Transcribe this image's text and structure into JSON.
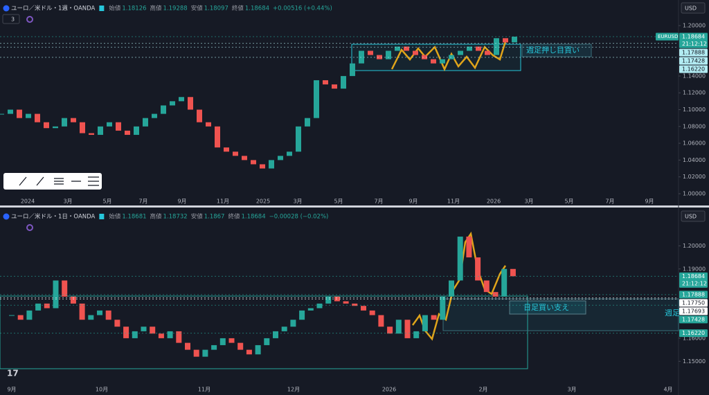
{
  "chart_data": [
    {
      "type": "candlestick",
      "header": {
        "symbol": "ユーロ／米ドル・1週・OANDA",
        "ohlc": [
          {
            "label": "始値",
            "value": 1.18126
          },
          {
            "label": "高値",
            "value": 1.19288
          },
          {
            "label": "安値",
            "value": 1.18097
          },
          {
            "label": "終値",
            "value": 1.18684
          }
        ],
        "change": "+0.00516 (+0.44%)"
      },
      "indicator_count": "3",
      "currency": "USD",
      "symbol_tag": "EURUSD",
      "countdown": "21:12:12",
      "up_color": "#26a69a",
      "down_color": "#ef5350",
      "values": [
        1.095,
        1.1,
        1.09,
        1.095,
        1.085,
        1.078,
        1.08,
        1.09,
        1.085,
        1.072,
        1.07,
        1.08,
        1.085,
        1.075,
        1.07,
        1.08,
        1.09,
        1.095,
        1.105,
        1.11,
        1.115,
        1.1,
        1.085,
        1.08,
        1.055,
        1.05,
        1.045,
        1.04,
        1.035,
        1.03,
        1.04,
        1.045,
        1.05,
        1.08,
        1.09,
        1.135,
        1.13,
        1.125,
        1.14,
        1.155,
        1.17,
        1.165,
        1.16,
        1.17,
        1.175,
        1.17,
        1.165,
        1.16,
        1.155,
        1.16,
        1.165,
        1.17,
        1.175,
        1.17,
        1.165,
        1.185,
        1.18,
        1.18684
      ],
      "ylim": [
        0.99,
        1.22
      ],
      "yticks": [
        {
          "value": 1.2,
          "label": "1.20000"
        },
        {
          "value": 1.14,
          "label": "1.14000"
        },
        {
          "value": 1.12,
          "label": "1.12000"
        },
        {
          "value": 1.1,
          "label": "1.10000"
        },
        {
          "value": 1.08,
          "label": "1.08000"
        },
        {
          "value": 1.06,
          "label": "1.06000"
        },
        {
          "value": 1.04,
          "label": "1.04000"
        },
        {
          "value": 1.02,
          "label": "1.02000"
        },
        {
          "value": 1.0,
          "label": "1.00000"
        }
      ],
      "xtick_labels": [
        "2024",
        "3月",
        "5月",
        "7月",
        "9月",
        "11月",
        "2025",
        "3月",
        "5月",
        "7月",
        "9月",
        "11月",
        "2026",
        "3月",
        "5月",
        "7月",
        "9月"
      ],
      "price_labels": [
        {
          "value": 1.18684,
          "label": "1.18684",
          "color": "#26a69a"
        },
        {
          "value": 1.17888,
          "label": "1.17888",
          "color": "#b2ebf2"
        },
        {
          "value": 1.17428,
          "label": "1.17428",
          "color": "#b2ebf2"
        },
        {
          "value": 1.1622,
          "label": "1.16220",
          "color": "#b2ebf2"
        }
      ],
      "annotations": [
        "週足押し目買い"
      ]
    },
    {
      "type": "candlestick",
      "header": {
        "symbol": "ユーロ／米ドル・1日・OANDA",
        "ohlc": [
          {
            "label": "始値",
            "value": 1.18681
          },
          {
            "label": "高値",
            "value": 1.18732
          },
          {
            "label": "安値",
            "value": 1.1867
          },
          {
            "label": "終値",
            "value": 1.18684
          }
        ],
        "change": "−0.00028 (−0.02%)"
      },
      "currency": "USD",
      "countdown": "21:12:12",
      "up_color": "#26a69a",
      "down_color": "#ef5350",
      "values": [
        1.17,
        1.168,
        1.172,
        1.175,
        1.173,
        1.185,
        1.178,
        1.175,
        1.168,
        1.17,
        1.172,
        1.168,
        1.165,
        1.16,
        1.163,
        1.165,
        1.162,
        1.16,
        1.163,
        1.158,
        1.155,
        1.152,
        1.155,
        1.157,
        1.16,
        1.158,
        1.155,
        1.153,
        1.157,
        1.16,
        1.163,
        1.165,
        1.168,
        1.172,
        1.173,
        1.175,
        1.178,
        1.176,
        1.175,
        1.174,
        1.172,
        1.17,
        1.165,
        1.162,
        1.168,
        1.16,
        1.163,
        1.17,
        1.168,
        1.178,
        1.185,
        1.204,
        1.195,
        1.185,
        1.18,
        1.178,
        1.19,
        1.18684
      ],
      "ylim": [
        1.145,
        1.21
      ],
      "yticks": [
        {
          "value": 1.2,
          "label": "1.20000"
        },
        {
          "value": 1.19,
          "label": "1.19000"
        },
        {
          "value": 1.16,
          "label": "1.16000"
        },
        {
          "value": 1.15,
          "label": "1.15000"
        }
      ],
      "xtick_labels": [
        "9月",
        "10月",
        "11月",
        "12月",
        "2026",
        "2月",
        "3月",
        "4月"
      ],
      "price_labels": [
        {
          "value": 1.18684,
          "label": "1.18684",
          "color": "#26a69a"
        },
        {
          "value": 1.17888,
          "label": "1.17888",
          "color": "#26a69a"
        },
        {
          "value": 1.1775,
          "label": "1.17750",
          "color": "#ffffff"
        },
        {
          "value": 1.17693,
          "label": "1.17693",
          "color": "#ffffff"
        },
        {
          "value": 1.17428,
          "label": "1.17428",
          "color": "#26a69a"
        },
        {
          "value": 1.1622,
          "label": "1.16220",
          "color": "#26a69a"
        }
      ],
      "annotations": [
        "日足買い支え",
        "週足"
      ]
    }
  ]
}
